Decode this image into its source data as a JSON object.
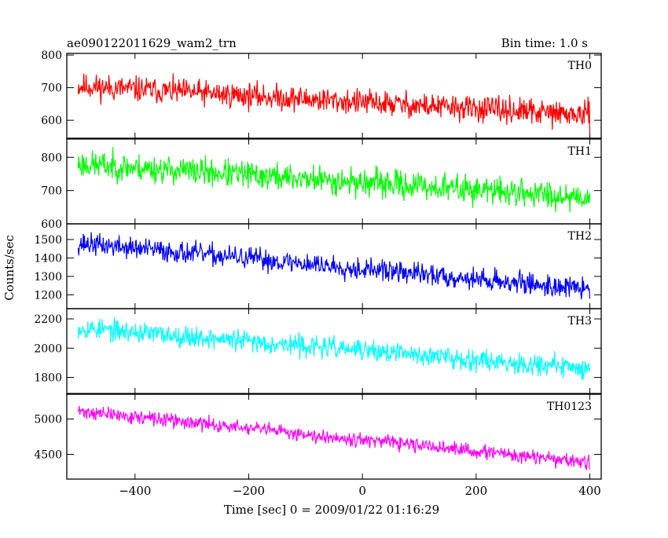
{
  "header": {
    "title": "ae090122011629_wam2_trn",
    "bin_time": "Bin time: 1.0 s"
  },
  "chart_data": {
    "type": "line",
    "ylabel": "Counts/sec",
    "xlabel": "Time [sec] 0 = 2009/01/22 01:16:29",
    "xlim": [
      -520,
      420
    ],
    "x_ticks": [
      -400,
      -200,
      0,
      200,
      400
    ],
    "x_tick_labels": [
      "−400",
      "−200",
      "0",
      "200",
      "400"
    ],
    "x_data_range": [
      -500,
      400
    ],
    "grid": false,
    "panels": [
      {
        "name": "TH0",
        "color": "#ff0000",
        "ylim": [
          545,
          805
        ],
        "y_ticks": [
          600,
          700,
          800
        ],
        "y_tick_labels": [
          "600",
          "700",
          "800"
        ],
        "trend": [
          705,
          615
        ],
        "noise": 30,
        "seed": 11
      },
      {
        "name": "TH1",
        "color": "#00ff00",
        "ylim": [
          600,
          855
        ],
        "y_ticks": [
          600,
          700,
          800
        ],
        "y_tick_labels": [
          "600",
          "700",
          "800"
        ],
        "trend": [
          780,
          680
        ],
        "noise": 32,
        "seed": 23
      },
      {
        "name": "TH2",
        "color": "#0000ff",
        "ylim": [
          1125,
          1585
        ],
        "y_ticks": [
          1200,
          1300,
          1400,
          1500
        ],
        "y_tick_labels": [
          "1200",
          "1300",
          "1400",
          "1500"
        ],
        "trend": [
          1480,
          1230
        ],
        "noise": 45,
        "seed": 37
      },
      {
        "name": "TH3",
        "color": "#00ffff",
        "ylim": [
          1690,
          2270
        ],
        "y_ticks": [
          1800,
          2000,
          2200
        ],
        "y_tick_labels": [
          "1800",
          "2000",
          "2200"
        ],
        "trend": [
          2140,
          1860
        ],
        "noise": 55,
        "seed": 53
      },
      {
        "name": "TH0123",
        "color": "#ff00ff",
        "ylim": [
          4150,
          5350
        ],
        "y_ticks": [
          4500,
          5000
        ],
        "y_tick_labels": [
          "4500",
          "5000"
        ],
        "trend": [
          5110,
          4380
        ],
        "noise": 75,
        "seed": 71
      }
    ]
  }
}
